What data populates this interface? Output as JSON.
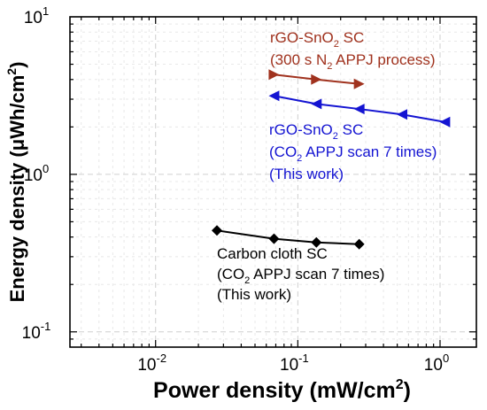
{
  "chart_data": {
    "type": "line",
    "xlabel": "Power density (mW/cm",
    "xlabel_sup": "2",
    "xlabel_end": ")",
    "ylabel": "Energy density (μWh/cm",
    "ylabel_sup": "2",
    "ylabel_end": ")",
    "xscale": "log",
    "yscale": "log",
    "xlim": [
      0.0025,
      1.8
    ],
    "ylim": [
      0.08,
      10
    ],
    "x_ticks": [
      {
        "value": 0.01,
        "base": "10",
        "exp": "-2"
      },
      {
        "value": 0.1,
        "base": "10",
        "exp": "-1"
      },
      {
        "value": 1,
        "base": "10",
        "exp": "0"
      }
    ],
    "y_ticks": [
      {
        "value": 0.1,
        "base": "10",
        "exp": "-1"
      },
      {
        "value": 1,
        "base": "10",
        "exp": "0"
      },
      {
        "value": 10,
        "base": "10",
        "exp": "1"
      }
    ],
    "grid": true,
    "series": [
      {
        "color": "#a0321e",
        "marker": "triangle-right",
        "x": [
          0.068,
          0.135,
          0.27
        ],
        "y": [
          4.3,
          4.0,
          3.75
        ]
      },
      {
        "color": "#1414d2",
        "marker": "triangle-left",
        "x": [
          0.068,
          0.135,
          0.27,
          0.54,
          1.08
        ],
        "y": [
          3.15,
          2.8,
          2.6,
          2.4,
          2.15
        ]
      },
      {
        "color": "#000000",
        "marker": "diamond",
        "x": [
          0.027,
          0.068,
          0.135,
          0.27
        ],
        "y": [
          0.44,
          0.39,
          0.37,
          0.36
        ]
      }
    ],
    "annotations": [
      {
        "color": "#a0321e",
        "lines": [
          {
            "parts": [
              {
                "t": "rGO-SnO"
              },
              {
                "t": "2",
                "sub": true
              },
              {
                "t": " SC"
              }
            ]
          },
          {
            "parts": [
              {
                "t": "(300 s N"
              },
              {
                "t": "2",
                "sub": true
              },
              {
                "t": " APPJ process)"
              }
            ]
          }
        ]
      },
      {
        "color": "#1414d2",
        "lines": [
          {
            "parts": [
              {
                "t": "rGO-SnO"
              },
              {
                "t": "2",
                "sub": true
              },
              {
                "t": " SC"
              }
            ]
          },
          {
            "parts": [
              {
                "t": "(CO"
              },
              {
                "t": "2",
                "sub": true
              },
              {
                "t": " APPJ scan 7 times)"
              }
            ]
          },
          {
            "parts": [
              {
                "t": "(This work)"
              }
            ]
          }
        ]
      },
      {
        "color": "#000000",
        "lines": [
          {
            "parts": [
              {
                "t": "Carbon cloth SC"
              }
            ]
          },
          {
            "parts": [
              {
                "t": "(CO"
              },
              {
                "t": "2",
                "sub": true
              },
              {
                "t": " APPJ scan 7 times)"
              }
            ]
          },
          {
            "parts": [
              {
                "t": "(This work)"
              }
            ]
          }
        ]
      }
    ]
  }
}
